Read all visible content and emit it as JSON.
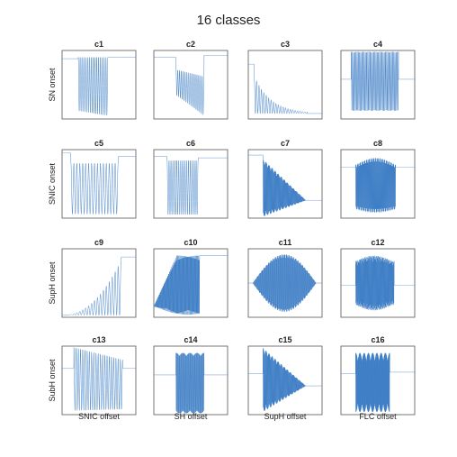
{
  "title": "16 classes",
  "row_labels": [
    "SN onset",
    "SNIC onset",
    "SupH onset",
    "SubH onset"
  ],
  "col_labels": [
    "SNIC offset",
    "SH offset",
    "SupH offset",
    "FLC offset"
  ],
  "colors": {
    "trace": "#3b7cc4",
    "frame": "#555555",
    "text": "#222222"
  },
  "chart_data": {
    "type": "line",
    "title": "16 classes",
    "grid": false,
    "axes_ticks": false,
    "panels": [
      {
        "label": "c1",
        "onset": "SN onset",
        "offset": "SNIC offset",
        "oscillation": "relaxation spikes, period slows down to the end",
        "y_range": [
          0,
          1
        ],
        "pre_level": 0.88,
        "post_level": 0.9,
        "cycles": 16
      },
      {
        "label": "c2",
        "onset": "SN onset",
        "offset": "SH offset",
        "oscillation": "relaxation spikes, abrupt stop",
        "y_range": [
          0,
          1
        ],
        "pre_level": 0.9,
        "post_level": 0.93,
        "cycles": 16
      },
      {
        "label": "c3",
        "onset": "SN onset",
        "offset": "SupH offset",
        "oscillation": "large spikes decaying to steady state",
        "y_range": [
          0,
          1
        ],
        "pre_level": 0.8,
        "post_level": 0.08,
        "cycles": 22
      },
      {
        "label": "c4",
        "onset": "SN onset",
        "offset": "FLC offset",
        "oscillation": "dense constant-amplitude burst",
        "y_range": [
          0,
          1
        ],
        "pre_level": 0.58,
        "post_level": 0.58,
        "cycles": 40
      },
      {
        "label": "c5",
        "onset": "SNIC onset",
        "offset": "SNIC offset",
        "oscillation": "relaxation spikes with slow ends",
        "y_range": [
          0,
          1
        ],
        "pre_level": 0.95,
        "post_level": 0.9,
        "cycles": 16
      },
      {
        "label": "c6",
        "onset": "SNIC onset",
        "offset": "SH offset",
        "oscillation": "relaxation spikes, abrupt stop",
        "y_range": [
          0,
          1
        ],
        "pre_level": 0.9,
        "post_level": 0.88,
        "cycles": 16
      },
      {
        "label": "c7",
        "onset": "SNIC onset",
        "offset": "SupH offset",
        "oscillation": "spikes shrinking to a point",
        "y_range": [
          0,
          1
        ],
        "pre_level": 0.92,
        "post_level": 0.26,
        "cycles": 90
      },
      {
        "label": "c8",
        "onset": "SNIC onset",
        "offset": "FLC offset",
        "oscillation": "dense burst with sudden end",
        "y_range": [
          0,
          1
        ],
        "pre_level": 0.74,
        "post_level": 0.74,
        "cycles": 90
      },
      {
        "label": "c9",
        "onset": "SupH onset",
        "offset": "SNIC offset",
        "oscillation": "growing oscillation into spikes",
        "y_range": [
          0,
          1
        ],
        "pre_level": 0.03,
        "post_level": 0.88,
        "cycles": 20
      },
      {
        "label": "c10",
        "onset": "SupH onset",
        "offset": "SH offset",
        "oscillation": "growing then full amplitude, abrupt stop",
        "y_range": [
          0,
          1
        ],
        "pre_level": 0.16,
        "post_level": 0.9,
        "cycles": 90
      },
      {
        "label": "c11",
        "onset": "SupH onset",
        "offset": "SupH offset",
        "oscillation": "symmetric spindle",
        "y_range": [
          0,
          1
        ],
        "pre_level": 0.5,
        "post_level": 0.5,
        "cycles": 110
      },
      {
        "label": "c12",
        "onset": "SupH onset",
        "offset": "FLC offset",
        "oscillation": "dense burst, abrupt stop",
        "y_range": [
          0,
          1
        ],
        "pre_level": 0.47,
        "post_level": 0.47,
        "cycles": 90
      },
      {
        "label": "c13",
        "onset": "SubH onset",
        "offset": "SNIC offset",
        "oscillation": "relaxation spikes, slowing at end",
        "y_range": [
          0,
          1
        ],
        "pre_level": 0.68,
        "post_level": 0.68,
        "cycles": 22
      },
      {
        "label": "c14",
        "onset": "SubH onset",
        "offset": "SH offset",
        "oscillation": "dense burst, abrupt stop",
        "y_range": [
          0,
          1
        ],
        "pre_level": 0.58,
        "post_level": 0.58,
        "cycles": 44
      },
      {
        "label": "c15",
        "onset": "SubH onset",
        "offset": "SupH offset",
        "oscillation": "burst decaying to steady state",
        "y_range": [
          0,
          1
        ],
        "pre_level": 0.6,
        "post_level": 0.42,
        "cycles": 90
      },
      {
        "label": "c16",
        "onset": "SubH onset",
        "offset": "FLC offset",
        "oscillation": "dense burst, abrupt stop",
        "y_range": [
          0,
          1
        ],
        "pre_level": 0.6,
        "post_level": 0.62,
        "cycles": 90
      }
    ]
  }
}
